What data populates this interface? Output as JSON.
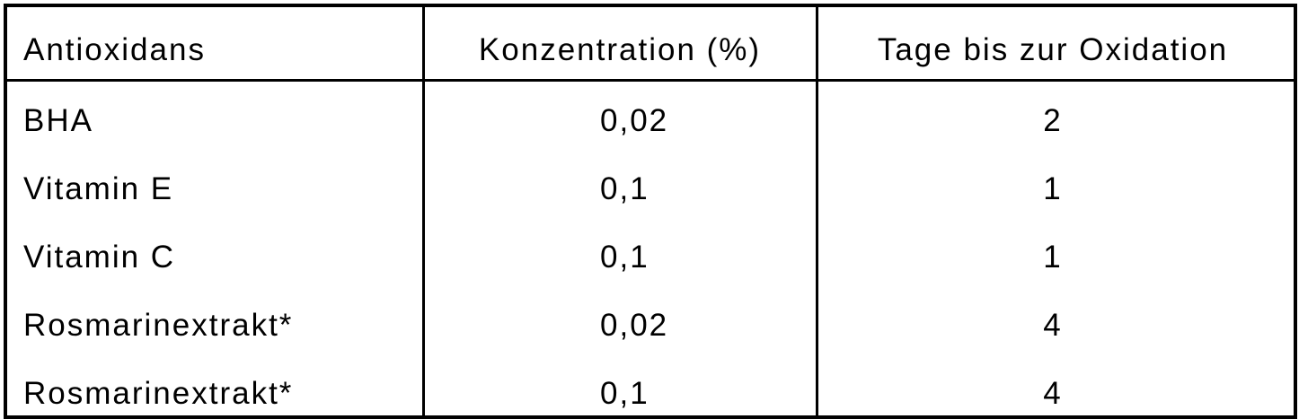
{
  "table": {
    "header": [
      "Antioxidans",
      "Konzentration (%)",
      "Tage bis zur Oxidation"
    ],
    "rows": [
      [
        "BHA",
        "0,02",
        "2"
      ],
      [
        "Vitamin E",
        "0,1",
        "1"
      ],
      [
        "Vitamin C",
        "0,1",
        "1"
      ],
      [
        "Rosmarinextrakt*",
        "0,02",
        "4"
      ],
      [
        "Rosmarinextrakt*",
        "0,1",
        "4"
      ]
    ]
  }
}
